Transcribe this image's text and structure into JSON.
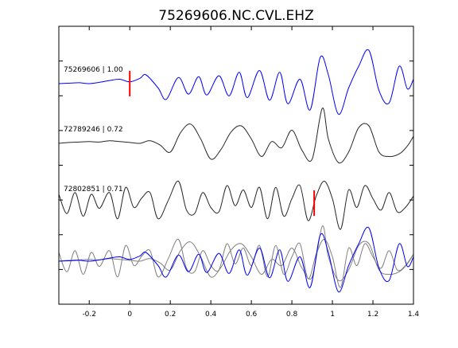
{
  "chart_data": {
    "type": "line",
    "title": "75269606.NC.CVL.EHZ",
    "xlabel": "",
    "ylabel": "",
    "xlim": [
      -0.35,
      1.4
    ],
    "x_ticks": [
      {
        "value": -0.2,
        "label": "-0.2"
      },
      {
        "value": 0,
        "label": "0"
      },
      {
        "value": 0.2,
        "label": "0.2"
      },
      {
        "value": 0.4,
        "label": "0.4"
      },
      {
        "value": 0.6,
        "label": "0.6"
      },
      {
        "value": 0.8,
        "label": "0.8"
      },
      {
        "value": 1,
        "label": "1"
      },
      {
        "value": 1.2,
        "label": "1.2"
      },
      {
        "value": 1.4,
        "label": "1.4"
      }
    ],
    "y_tick_count": 9,
    "grid": false,
    "legend": "none",
    "series": [
      {
        "name": "75269606 | 1.00",
        "color": "#0000ff",
        "offset": 0,
        "x": [
          -0.35,
          -0.3,
          -0.25,
          -0.2,
          -0.15,
          -0.1,
          -0.05,
          0,
          0.05,
          0.08,
          0.14,
          0.18,
          0.24,
          0.29,
          0.34,
          0.38,
          0.44,
          0.49,
          0.54,
          0.58,
          0.64,
          0.69,
          0.74,
          0.78,
          0.84,
          0.89,
          0.94,
          0.98,
          1.03,
          1.08,
          1.13,
          1.18,
          1.23,
          1.28,
          1.33,
          1.37,
          1.4
        ],
        "y": [
          0,
          0.05,
          0.1,
          0,
          0.15,
          0.35,
          0.5,
          0.2,
          0.6,
          1.0,
          -0.5,
          -1.8,
          0.7,
          -1.2,
          0.8,
          -1.3,
          0.9,
          -1.4,
          1.3,
          -1.6,
          1.5,
          -1.9,
          1.3,
          -2.3,
          0.5,
          -3.0,
          3.0,
          1.0,
          -3.5,
          -0.5,
          2.0,
          3.8,
          -0.8,
          -2.2,
          2.0,
          -0.6,
          0.5
        ]
      },
      {
        "name": "72789246 | 0.72",
        "color": "#262626",
        "offset": 1,
        "x": [
          -0.35,
          -0.3,
          -0.25,
          -0.2,
          -0.15,
          -0.1,
          -0.05,
          0,
          0.05,
          0.1,
          0.15,
          0.2,
          0.25,
          0.3,
          0.35,
          0.4,
          0.45,
          0.5,
          0.55,
          0.6,
          0.65,
          0.7,
          0.75,
          0.8,
          0.85,
          0.9,
          0.95,
          0.98,
          1.03,
          1.08,
          1.13,
          1.18,
          1.23,
          1.28,
          1.33,
          1.37,
          1.4
        ],
        "y": [
          0,
          0.1,
          0.15,
          0.2,
          0.15,
          0.3,
          0.2,
          0.1,
          0,
          0.3,
          -0.2,
          -1.0,
          1.2,
          2.2,
          0.5,
          -1.8,
          -0.7,
          1.3,
          2.0,
          0.5,
          -1.5,
          0.2,
          -0.5,
          1.5,
          -0.8,
          -1.8,
          4.0,
          0.5,
          -2.2,
          -1.0,
          1.8,
          2.0,
          -1.0,
          -1.5,
          -1.2,
          -0.3,
          0.8
        ]
      },
      {
        "name": "72802851 | 0.71",
        "color": "#262626",
        "offset": 2,
        "x": [
          -0.35,
          -0.31,
          -0.27,
          -0.23,
          -0.19,
          -0.15,
          -0.1,
          -0.06,
          -0.02,
          0.02,
          0.06,
          0.1,
          0.14,
          0.19,
          0.24,
          0.28,
          0.32,
          0.36,
          0.4,
          0.44,
          0.48,
          0.52,
          0.56,
          0.6,
          0.64,
          0.68,
          0.72,
          0.76,
          0.8,
          0.84,
          0.88,
          0.92,
          0.96,
          1.0,
          1.04,
          1.08,
          1.12,
          1.16,
          1.2,
          1.24,
          1.28,
          1.32,
          1.36,
          1.4
        ],
        "y": [
          1.0,
          -1.2,
          1.2,
          -1.5,
          1.0,
          -0.6,
          1.2,
          -1.8,
          1.8,
          -0.5,
          0.6,
          1.2,
          -1.8,
          0.3,
          2.5,
          -0.8,
          -1.2,
          1.2,
          -0.5,
          -1.0,
          2.0,
          -0.3,
          1.5,
          -0.5,
          1.8,
          -1.8,
          1.8,
          -1.5,
          0.5,
          2.0,
          -2.0,
          0.8,
          2.5,
          0.5,
          -3.0,
          1.5,
          -0.5,
          2.0,
          0.5,
          -0.8,
          1.2,
          -1.0,
          -0.5,
          0.8
        ]
      },
      {
        "name": "",
        "color": "#0000ff",
        "offset": 3,
        "x": [
          -0.35,
          -0.3,
          -0.25,
          -0.2,
          -0.15,
          -0.1,
          -0.05,
          0,
          0.05,
          0.08,
          0.14,
          0.18,
          0.24,
          0.29,
          0.34,
          0.38,
          0.44,
          0.49,
          0.54,
          0.58,
          0.64,
          0.69,
          0.74,
          0.78,
          0.84,
          0.89,
          0.94,
          0.98,
          1.03,
          1.08,
          1.13,
          1.18,
          1.23,
          1.28,
          1.33,
          1.37,
          1.4
        ],
        "y": [
          0,
          0.05,
          0.1,
          0,
          0.15,
          0.35,
          0.5,
          0.2,
          0.6,
          1.0,
          -0.5,
          -1.8,
          0.7,
          -1.2,
          0.8,
          -1.3,
          0.9,
          -1.4,
          1.3,
          -1.6,
          1.5,
          -1.9,
          1.3,
          -2.3,
          0.5,
          -3.0,
          3.0,
          1.0,
          -3.5,
          -0.5,
          2.0,
          3.8,
          -0.8,
          -2.2,
          2.0,
          -0.6,
          0.5
        ]
      },
      {
        "name": "",
        "color": "#7f7f7f",
        "offset": 3,
        "x": [
          -0.35,
          -0.3,
          -0.25,
          -0.2,
          -0.15,
          -0.1,
          -0.05,
          0,
          0.05,
          0.1,
          0.15,
          0.2,
          0.25,
          0.3,
          0.35,
          0.4,
          0.45,
          0.5,
          0.55,
          0.6,
          0.65,
          0.7,
          0.75,
          0.8,
          0.85,
          0.9,
          0.95,
          0.98,
          1.03,
          1.08,
          1.13,
          1.18,
          1.23,
          1.28,
          1.33,
          1.37,
          1.4
        ],
        "y": [
          0,
          0.1,
          0.15,
          0.2,
          0.15,
          0.3,
          0.2,
          0.1,
          0,
          0.3,
          -0.2,
          -1.0,
          1.2,
          2.2,
          0.5,
          -1.8,
          -0.7,
          1.3,
          2.0,
          0.5,
          -1.5,
          0.2,
          -0.5,
          1.5,
          -0.8,
          -1.8,
          4.0,
          0.5,
          -2.2,
          -1.0,
          1.8,
          2.0,
          -1.0,
          -1.5,
          -1.2,
          -0.3,
          0.8
        ]
      },
      {
        "name": "",
        "color": "#7f7f7f",
        "offset": 3,
        "x": [
          -0.35,
          -0.31,
          -0.27,
          -0.23,
          -0.19,
          -0.15,
          -0.1,
          -0.06,
          -0.02,
          0.02,
          0.06,
          0.1,
          0.14,
          0.19,
          0.24,
          0.28,
          0.32,
          0.36,
          0.4,
          0.44,
          0.48,
          0.52,
          0.56,
          0.6,
          0.64,
          0.68,
          0.72,
          0.76,
          0.8,
          0.84,
          0.88,
          0.92,
          0.96,
          1.0,
          1.04,
          1.08,
          1.12,
          1.16,
          1.2,
          1.24,
          1.28,
          1.32,
          1.36,
          1.4
        ],
        "y": [
          1.0,
          -1.2,
          1.2,
          -1.5,
          1.0,
          -0.6,
          1.2,
          -1.8,
          1.8,
          -0.5,
          0.6,
          1.2,
          -1.8,
          0.3,
          2.5,
          -0.8,
          -1.2,
          1.2,
          -0.5,
          -1.0,
          2.0,
          -0.3,
          1.5,
          -0.5,
          1.8,
          -1.8,
          1.8,
          -1.5,
          0.5,
          2.0,
          -2.0,
          0.8,
          2.5,
          0.5,
          -3.0,
          1.5,
          -0.5,
          2.0,
          0.5,
          -0.8,
          1.2,
          -1.0,
          -0.5,
          0.8
        ]
      }
    ],
    "markers": [
      {
        "x": 0,
        "trace": 0,
        "color": "#ff0000"
      },
      {
        "x": 0.91,
        "trace": 2,
        "color": "#ff0000"
      }
    ]
  }
}
